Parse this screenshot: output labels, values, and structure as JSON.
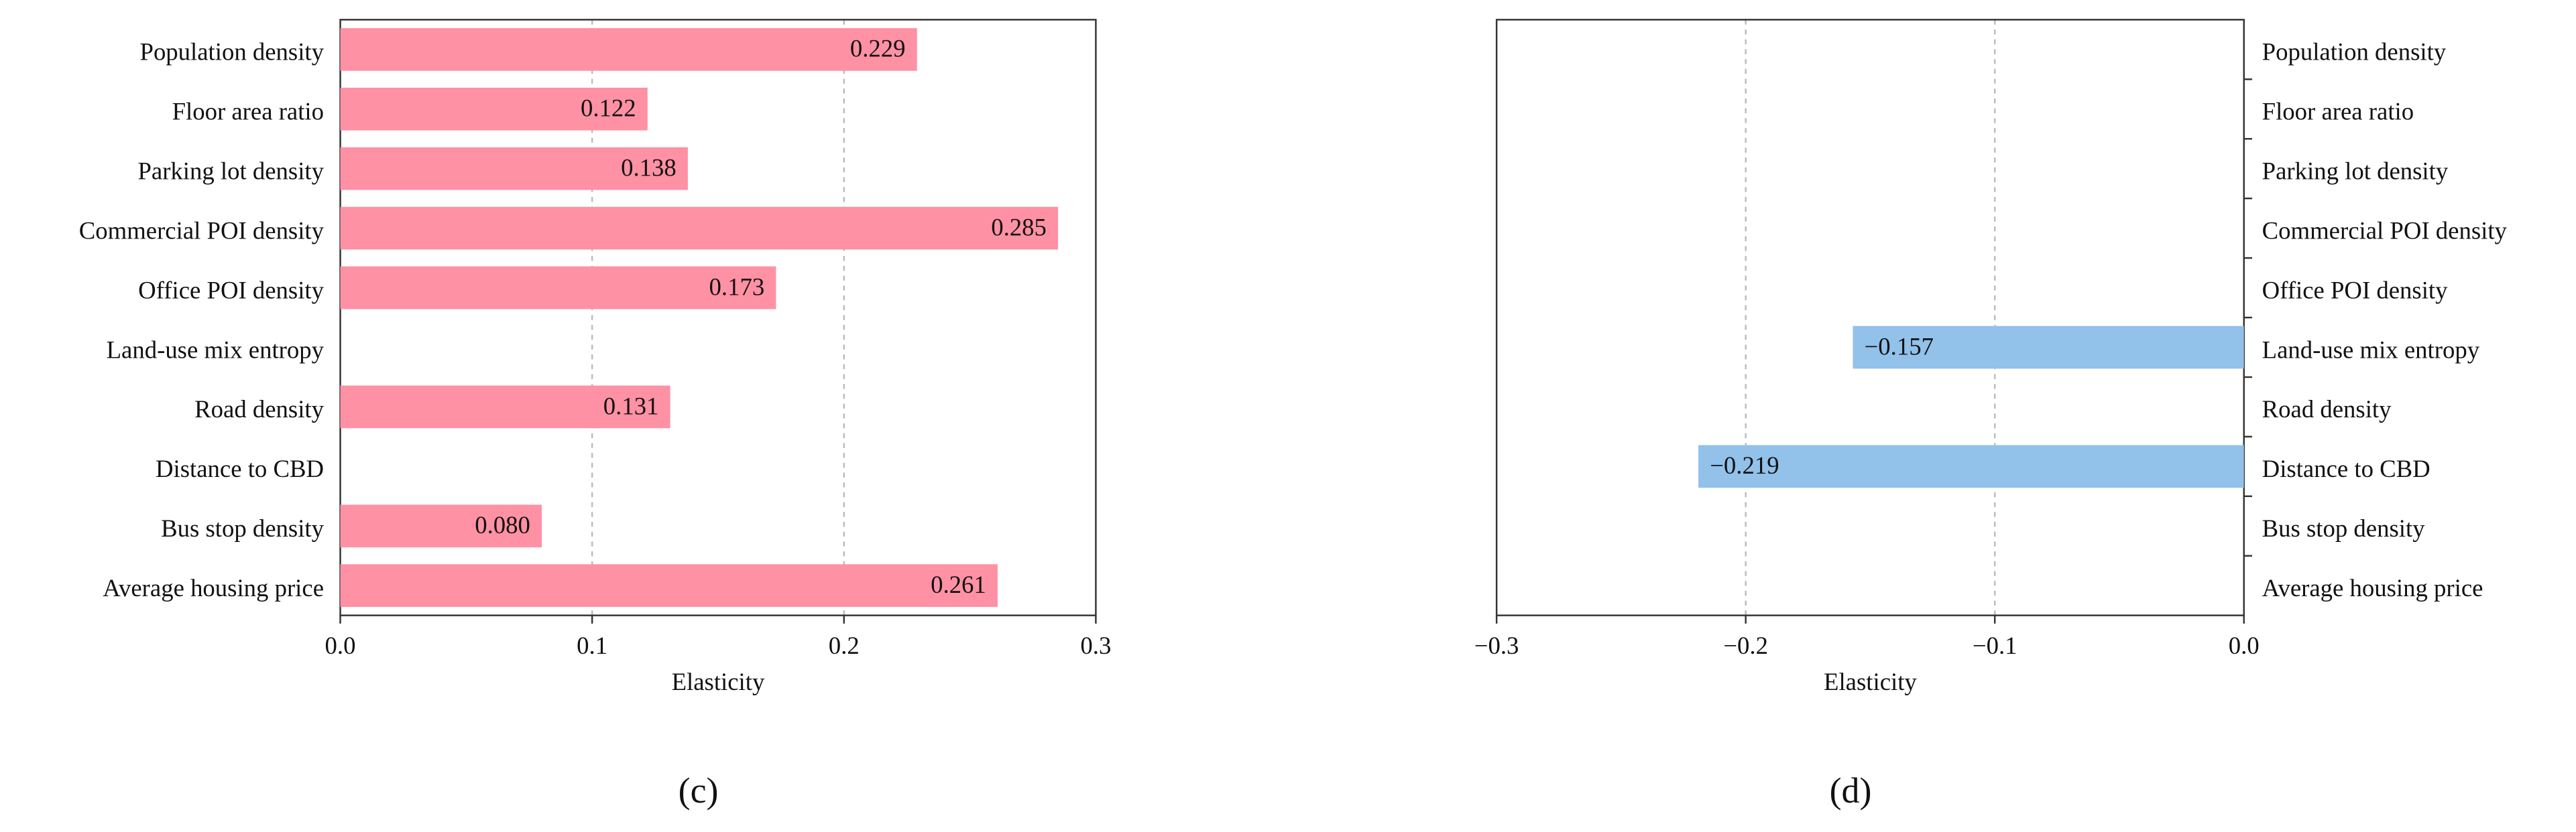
{
  "chart_data": [
    {
      "type": "barh",
      "panel_label": "(c)",
      "xlabel": "Elasticity",
      "categories": [
        "Population density",
        "Floor area ratio",
        "Parking lot density",
        "Commercial POI density",
        "Office POI density",
        "Land-use mix entropy",
        "Road density",
        "Distance to CBD",
        "Bus stop density",
        "Average housing price"
      ],
      "values": [
        0.229,
        0.122,
        0.138,
        0.285,
        0.173,
        null,
        0.131,
        null,
        0.08,
        0.261
      ],
      "value_labels": [
        "0.229",
        "0.122",
        "0.138",
        "0.285",
        "0.173",
        null,
        "0.131",
        null,
        "0.080",
        "0.261"
      ],
      "color": "#fe91a4",
      "xlim": [
        0,
        0.3
      ],
      "xticks": [
        {
          "value": 0,
          "label": "0.0"
        },
        0.1,
        0.2,
        0.3
      ],
      "grid": true,
      "category_axis": "left"
    },
    {
      "type": "barh",
      "panel_label": "(d)",
      "xlabel": "Elasticity",
      "categories": [
        "Population density",
        "Floor area ratio",
        "Parking lot density",
        "Commercial POI density",
        "Office POI density",
        "Land-use mix entropy",
        "Road density",
        "Distance to CBD",
        "Bus stop density",
        "Average housing price"
      ],
      "values": [
        null,
        null,
        null,
        null,
        null,
        -0.157,
        null,
        -0.219,
        null,
        null
      ],
      "value_labels": [
        null,
        null,
        null,
        null,
        null,
        "−0.157",
        null,
        "−0.219",
        null,
        null
      ],
      "color": "#92c1ea",
      "xlim": [
        -0.3,
        0
      ],
      "xticks": [
        {
          "value": -0.3,
          "label": "−0.3"
        },
        {
          "value": -0.2,
          "label": "−0.2"
        },
        {
          "value": -0.1,
          "label": "−0.1"
        },
        {
          "value": 0,
          "label": "0.0"
        }
      ],
      "grid": true,
      "category_axis": "right"
    }
  ]
}
